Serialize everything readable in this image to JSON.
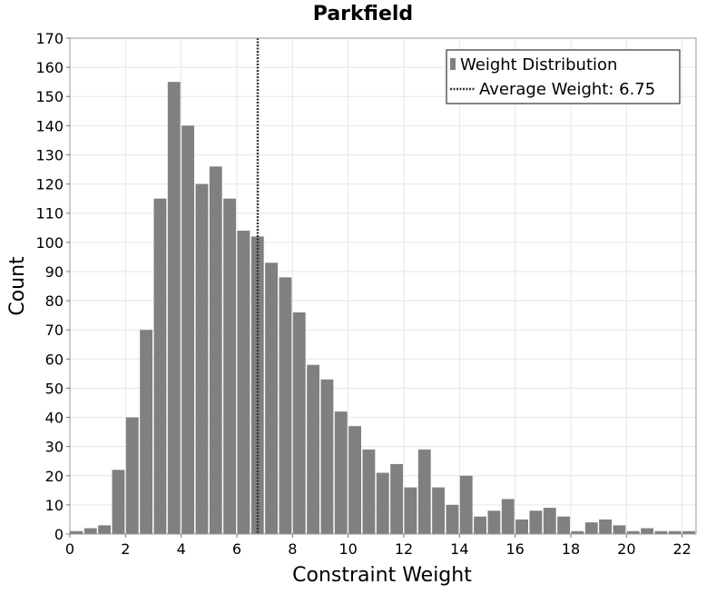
{
  "chart_data": {
    "type": "bar",
    "title": "Parkfield",
    "xlabel": "Constraint Weight",
    "ylabel": "Count",
    "xlim": [
      0,
      22.5
    ],
    "ylim": [
      0,
      170
    ],
    "bin_width": 0.5,
    "x_ticks": [
      "0",
      "2",
      "4",
      "6",
      "8",
      "10",
      "12",
      "14",
      "16",
      "18",
      "20",
      "22"
    ],
    "y_ticks": [
      "0",
      "10",
      "20",
      "30",
      "40",
      "50",
      "60",
      "70",
      "80",
      "90",
      "100",
      "110",
      "120",
      "130",
      "140",
      "150",
      "160",
      "170"
    ],
    "grid": true,
    "legend_position": "top-right",
    "series": [
      {
        "name": "Weight Distribution",
        "color": "#808080",
        "bins": [
          {
            "x": 0.0,
            "y": 1
          },
          {
            "x": 0.5,
            "y": 2
          },
          {
            "x": 1.0,
            "y": 3
          },
          {
            "x": 1.5,
            "y": 22
          },
          {
            "x": 2.0,
            "y": 40
          },
          {
            "x": 2.5,
            "y": 70
          },
          {
            "x": 3.0,
            "y": 115
          },
          {
            "x": 3.5,
            "y": 155
          },
          {
            "x": 4.0,
            "y": 140
          },
          {
            "x": 4.5,
            "y": 120
          },
          {
            "x": 5.0,
            "y": 126
          },
          {
            "x": 5.5,
            "y": 115
          },
          {
            "x": 6.0,
            "y": 104
          },
          {
            "x": 6.5,
            "y": 102
          },
          {
            "x": 7.0,
            "y": 93
          },
          {
            "x": 7.5,
            "y": 88
          },
          {
            "x": 8.0,
            "y": 76
          },
          {
            "x": 8.5,
            "y": 58
          },
          {
            "x": 9.0,
            "y": 53
          },
          {
            "x": 9.5,
            "y": 42
          },
          {
            "x": 10.0,
            "y": 37
          },
          {
            "x": 10.5,
            "y": 29
          },
          {
            "x": 11.0,
            "y": 21
          },
          {
            "x": 11.5,
            "y": 24
          },
          {
            "x": 12.0,
            "y": 16
          },
          {
            "x": 12.5,
            "y": 29
          },
          {
            "x": 13.0,
            "y": 16
          },
          {
            "x": 13.5,
            "y": 10
          },
          {
            "x": 14.0,
            "y": 20
          },
          {
            "x": 14.5,
            "y": 6
          },
          {
            "x": 15.0,
            "y": 8
          },
          {
            "x": 15.5,
            "y": 12
          },
          {
            "x": 16.0,
            "y": 5
          },
          {
            "x": 16.5,
            "y": 8
          },
          {
            "x": 17.0,
            "y": 9
          },
          {
            "x": 17.5,
            "y": 6
          },
          {
            "x": 18.0,
            "y": 1
          },
          {
            "x": 18.5,
            "y": 4
          },
          {
            "x": 19.0,
            "y": 5
          },
          {
            "x": 19.5,
            "y": 3
          },
          {
            "x": 20.0,
            "y": 1
          },
          {
            "x": 20.5,
            "y": 2
          },
          {
            "x": 21.0,
            "y": 1
          },
          {
            "x": 21.5,
            "y": 1
          },
          {
            "x": 22.0,
            "y": 1
          }
        ]
      }
    ],
    "average_line": {
      "label": "Average Weight: 6.75",
      "value": 6.75,
      "style": "dotted",
      "color": "#333333"
    }
  }
}
